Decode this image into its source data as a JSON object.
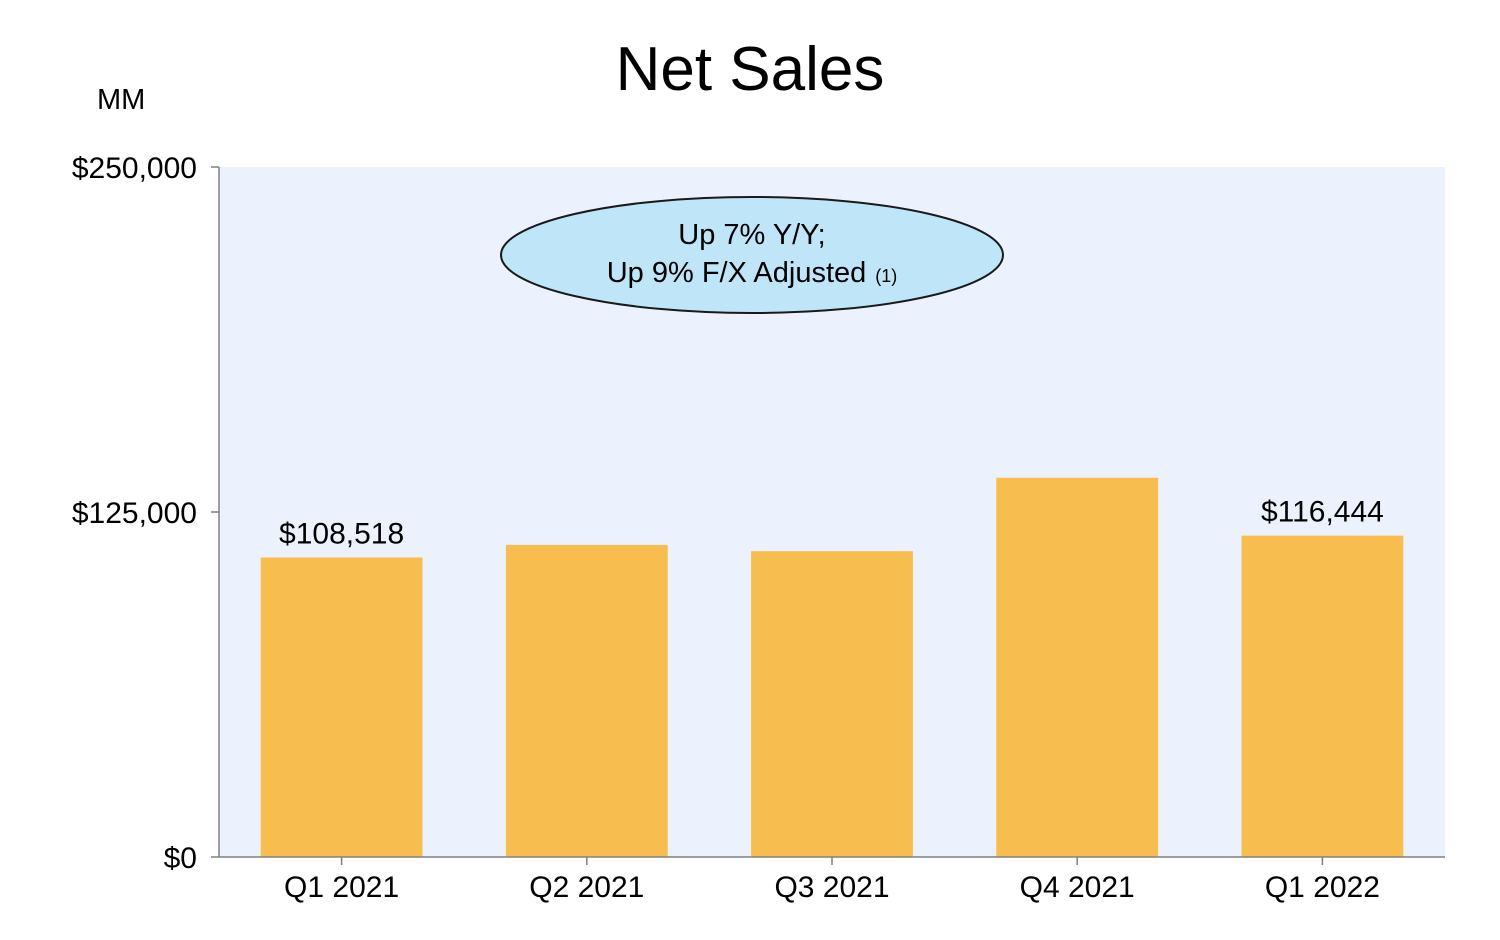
{
  "chart_data": {
    "type": "bar",
    "title": "Net Sales",
    "units_label": "MM",
    "categories": [
      "Q1 2021",
      "Q2 2021",
      "Q3 2021",
      "Q4 2021",
      "Q1 2022"
    ],
    "values": [
      108518,
      113080,
      110812,
      137412,
      116444
    ],
    "data_labels": [
      "$108,518",
      "",
      "",
      "",
      "$116,444"
    ],
    "ylim": [
      0,
      250000
    ],
    "yticks": [
      {
        "value": 0,
        "label": "$0"
      },
      {
        "value": 125000,
        "label": "$125,000"
      },
      {
        "value": 250000,
        "label": "$250,000"
      }
    ],
    "annotation": {
      "line1": "Up 7% Y/Y;",
      "line2": "Up 9% F/X Adjusted",
      "footnote": "(1)"
    },
    "grid": false,
    "legend": "none",
    "colors": {
      "bar": "#F7BE4F",
      "plot_bg": "#EBF2FD",
      "axis": "#808080",
      "callout_fill": "#BEE6F8",
      "callout_stroke": "#1A1A1A"
    }
  }
}
